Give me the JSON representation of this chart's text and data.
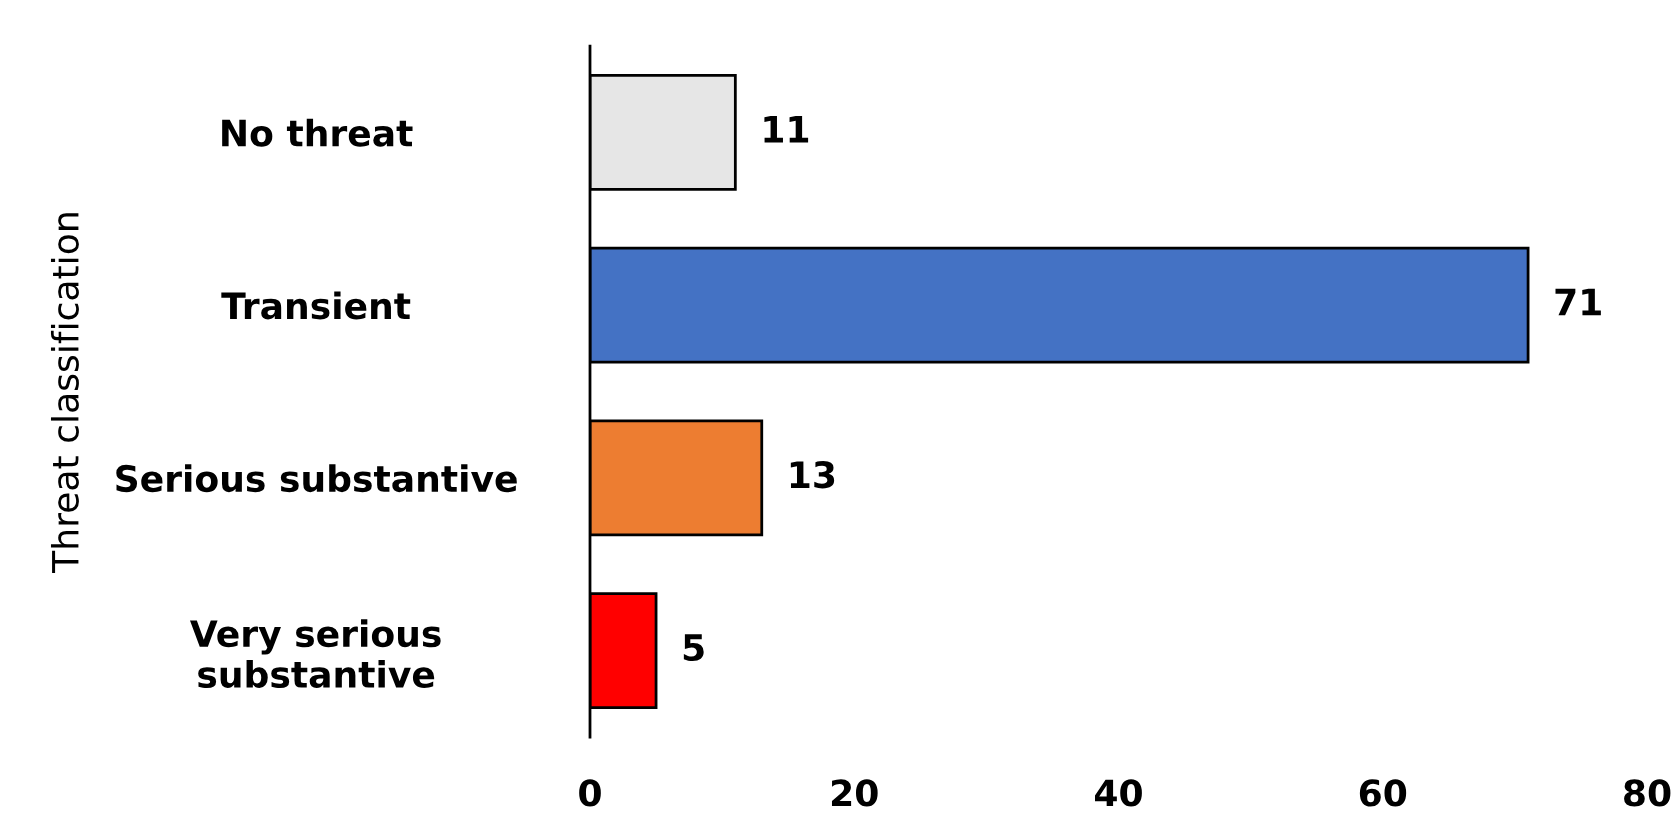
{
  "chart_data": {
    "type": "bar",
    "orientation": "horizontal",
    "ylabel": "Threat classification",
    "categories": [
      "No threat",
      "Transient",
      "Serious substantive",
      "Very serious\nsubstantive"
    ],
    "values": [
      11,
      71,
      13,
      5
    ],
    "colors": [
      "#e6e6e6",
      "#4472c4",
      "#ed7d31",
      "#ff0000"
    ],
    "xlim": [
      0,
      80
    ],
    "xticks": [
      0,
      20,
      40,
      60,
      80
    ],
    "data_labels": true,
    "grid": false,
    "legend": false
  }
}
